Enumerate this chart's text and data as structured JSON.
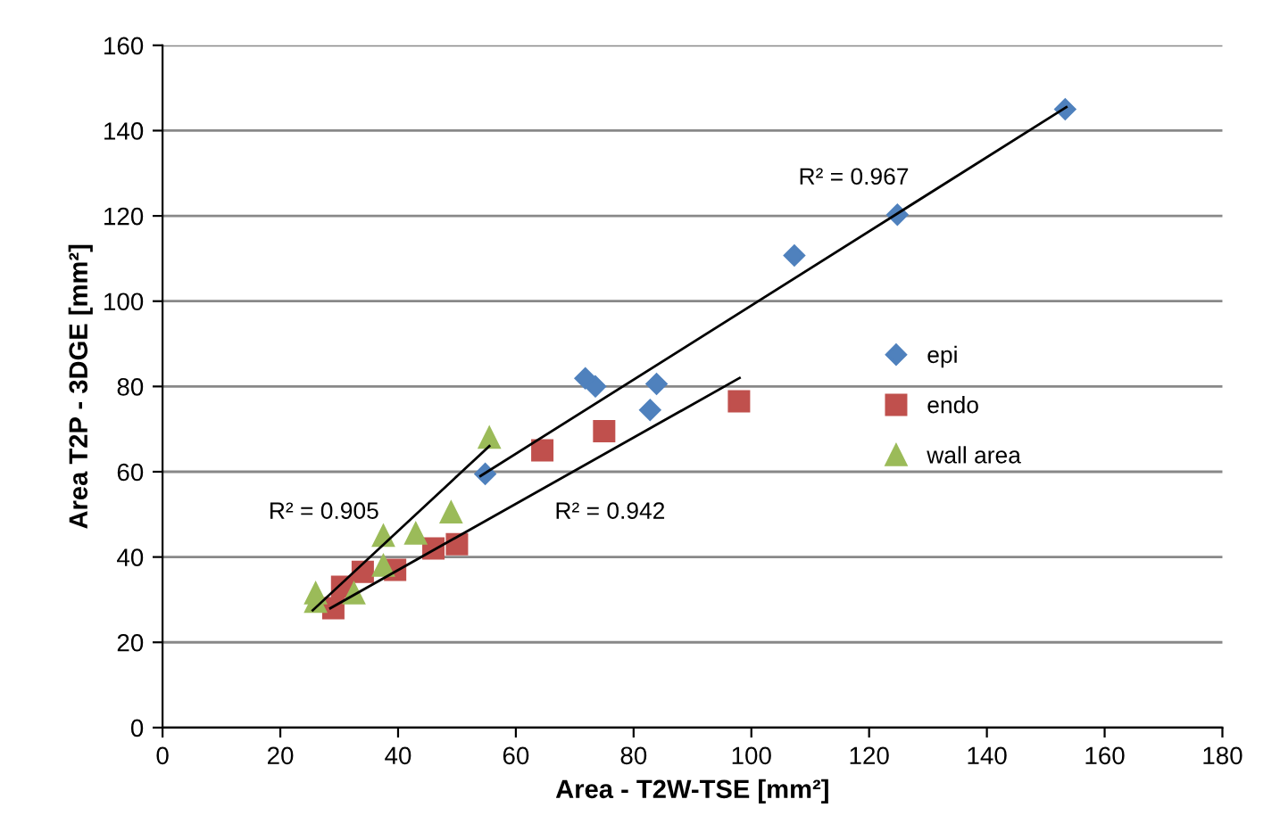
{
  "chart_data": {
    "type": "scatter",
    "xlabel": "Area - T2W-TSE [mm²]",
    "ylabel": "Area T2P - 3DGE [mm²]",
    "xlim": [
      0,
      180
    ],
    "ylim": [
      0,
      160
    ],
    "xticks": [
      0,
      20,
      40,
      60,
      80,
      100,
      120,
      140,
      160,
      180
    ],
    "yticks": [
      0,
      20,
      40,
      60,
      80,
      100,
      120,
      140,
      160
    ],
    "grid": "y",
    "legend": "right",
    "series": [
      {
        "name": "epi",
        "color": "#4f81bd",
        "marker": "diamond",
        "x": [
          153.3,
          124.8,
          107.3,
          71.8,
          73.5,
          83.9,
          82.8,
          54.8
        ],
        "values": [
          145,
          120.3,
          110.7,
          81.9,
          80,
          80.6,
          74.5,
          59.5
        ]
      },
      {
        "name": "endo",
        "color": "#c0504d",
        "marker": "square",
        "x": [
          97.9,
          75,
          64.5,
          50,
          46,
          39.5,
          34,
          30.5,
          29
        ],
        "values": [
          76.5,
          69.5,
          65,
          43,
          42,
          37,
          36.5,
          33,
          28
        ]
      },
      {
        "name": "wall area",
        "color": "#9bbb59",
        "marker": "triangle",
        "x": [
          26,
          26,
          32.5,
          37.5,
          37.5,
          43,
          49,
          55.5
        ],
        "values": [
          29.5,
          31.5,
          31.5,
          38,
          45,
          45.5,
          50.5,
          68
        ]
      },
      {
        "type": "line",
        "color": "#000000",
        "x": [
          54,
          153.5
        ],
        "values": [
          59,
          145.5
        ]
      },
      {
        "type": "line",
        "color": "#000000",
        "x": [
          28.5,
          98
        ],
        "values": [
          28,
          82
        ]
      },
      {
        "type": "line",
        "color": "#000000",
        "x": [
          25.5,
          55.5
        ],
        "values": [
          27.5,
          66
        ]
      }
    ],
    "annotations": [
      "R² = 0.967",
      "R² = 0.942",
      "R² = 0.905"
    ]
  }
}
